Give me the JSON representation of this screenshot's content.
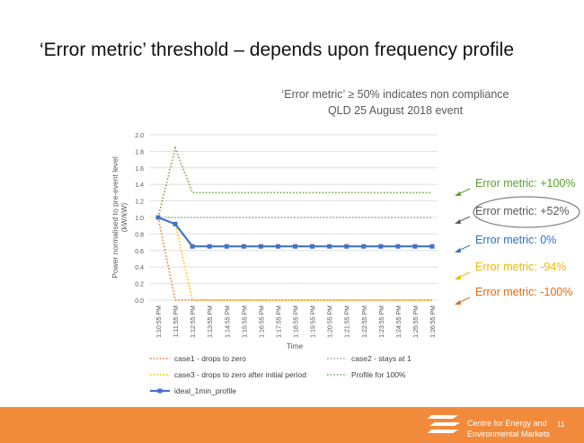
{
  "slide": {
    "title": "‘Error metric’ threshold – depends upon frequency profile",
    "page_number": "11",
    "footer_org_line1": "Centre for Energy and",
    "footer_org_line2": "Environmental Markets",
    "footer_color": "#f28a3c"
  },
  "annotations": [
    {
      "text": "Error metric: +100%",
      "color": "#5aa02c",
      "circled": false
    },
    {
      "text": "Error metric: +52%",
      "color": "#595959",
      "circled": true
    },
    {
      "text": "Error metric: 0%",
      "color": "#2e6fc3",
      "circled": false
    },
    {
      "text": "Error metric: -94%",
      "color": "#f0b800",
      "circled": false
    },
    {
      "text": "Error metric: -100%",
      "color": "#e46c0a",
      "circled": false
    }
  ],
  "chart_data": {
    "type": "line",
    "title_line1": "‘Error metric’ ≥ 50% indicates non compliance",
    "title_line2": "QLD 25 August 2018 event",
    "xlabel": "Time",
    "ylabel_line1": "Power normalised to pre-event level",
    "ylabel_line2": "(kW/kW)",
    "ylim": [
      0,
      2
    ],
    "yticks": [
      "0.0",
      "0.2",
      "0.4",
      "0.6",
      "0.8",
      "1.0",
      "1.2",
      "1.4",
      "1.6",
      "1.8",
      "2.0"
    ],
    "grid": true,
    "categories": [
      "1:10:55 PM",
      "1:11:55 PM",
      "1:12:55 PM",
      "1:13:55 PM",
      "1:14:55 PM",
      "1:15:55 PM",
      "1:16:55 PM",
      "1:17:55 PM",
      "1:18:55 PM",
      "1:19:55 PM",
      "1:20:55 PM",
      "1:21:55 PM",
      "1:22:55 PM",
      "1:23:55 PM",
      "1:24:55 PM",
      "1:25:55 PM",
      "1:26:55 PM"
    ],
    "series": [
      {
        "name": "case1 - drops to zero",
        "color": "#ed7d31",
        "style": "dotted",
        "x": [
          0,
          1,
          16
        ],
        "values": [
          1.0,
          0.0,
          0.0
        ]
      },
      {
        "name": "case2 - stays at 1",
        "color": "#a5a5a5",
        "style": "dotted",
        "x": [
          0,
          16
        ],
        "values": [
          1.0,
          1.0
        ]
      },
      {
        "name": "case3 - drops to zero after initial period",
        "color": "#ffc000",
        "style": "dotted",
        "x": [
          0,
          1,
          2,
          16
        ],
        "values": [
          1.0,
          0.92,
          0.0,
          0.0
        ]
      },
      {
        "name": "Profile for 100%",
        "color": "#70ad47",
        "style": "dotted",
        "x": [
          0,
          1,
          2,
          16
        ],
        "values": [
          1.0,
          1.84,
          1.3,
          1.3
        ]
      },
      {
        "name": "ideal_1min_profile",
        "color": "#4472c4",
        "style": "solid-markers",
        "x": [
          0,
          1,
          2,
          3,
          4,
          5,
          6,
          7,
          8,
          9,
          10,
          11,
          12,
          13,
          14,
          15,
          16
        ],
        "values": [
          1.0,
          0.92,
          0.65,
          0.65,
          0.65,
          0.65,
          0.65,
          0.65,
          0.65,
          0.65,
          0.65,
          0.65,
          0.65,
          0.65,
          0.65,
          0.65,
          0.65
        ]
      }
    ],
    "legend_position": "bottom"
  }
}
